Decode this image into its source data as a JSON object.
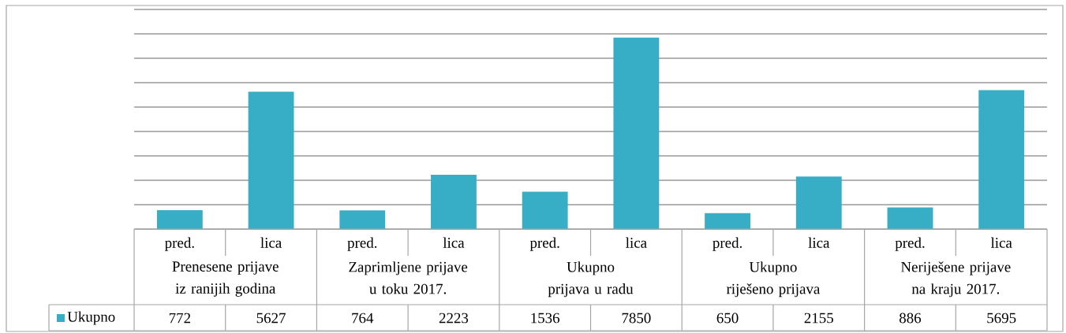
{
  "chart_data": {
    "type": "bar",
    "categories": [
      "pred.",
      "lica",
      "pred.",
      "lica",
      "pred.",
      "lica",
      "pred.",
      "lica",
      "pred.",
      "lica"
    ],
    "annotations": [
      "Prenesene prijave iz ranijih godina",
      "Zaprimljene prijave u toku 2017.",
      "Ukupno prijava u radu",
      "Ukupno riješeno prijava",
      "Neriješene prijave na kraju 2017."
    ],
    "series": [
      {
        "name": "Ukupno",
        "color": "#38aec6",
        "values": [
          772,
          5627,
          764,
          2223,
          1536,
          7850,
          650,
          2155,
          886,
          5695
        ]
      }
    ],
    "ylim": [
      0,
      9000
    ],
    "yticks": [
      {
        "value": 0,
        "label": null
      },
      {
        "value": 1000,
        "label": null
      },
      {
        "value": 2000,
        "label": null
      },
      {
        "value": 3000,
        "label": null
      },
      {
        "value": 4000,
        "label": null
      },
      {
        "value": 5000,
        "label": null
      },
      {
        "value": 6000,
        "label": null
      },
      {
        "value": 7000,
        "label": null
      },
      {
        "value": 8000,
        "label": null
      },
      {
        "value": 9000,
        "label": null
      }
    ],
    "grid": "y",
    "legend": "bottom left",
    "data_labels": true
  }
}
